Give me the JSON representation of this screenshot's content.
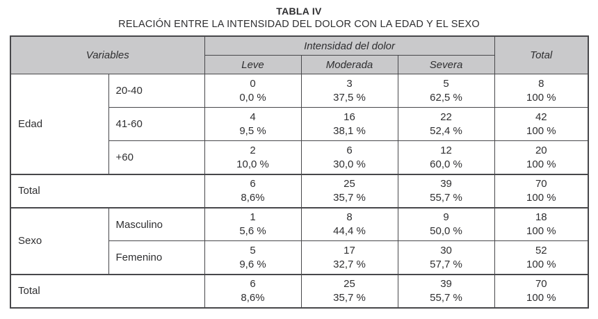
{
  "page": {
    "title": "TABLA IV",
    "subtitle": "RELACIÓN ENTRE LA INTENSIDAD DEL DOLOR CON LA EDAD Y EL SEXO"
  },
  "colors": {
    "header_bg": "#c9c9cb",
    "border": "#47474a",
    "text": "#2e2e30",
    "background": "#ffffff"
  },
  "table": {
    "header": {
      "variables": "Variables",
      "intensity": "Intensidad del dolor",
      "levels": [
        "Leve",
        "Moderada",
        "Severa"
      ],
      "total": "Total"
    },
    "edad": {
      "label": "Edad",
      "rows": [
        {
          "label": "20-40",
          "cells": [
            {
              "count": "0",
              "pct": "0,0 %"
            },
            {
              "count": "3",
              "pct": "37,5 %"
            },
            {
              "count": "5",
              "pct": "62,5 %"
            },
            {
              "count": "8",
              "pct": "100 %"
            }
          ]
        },
        {
          "label": "41-60",
          "cells": [
            {
              "count": "4",
              "pct": "9,5 %"
            },
            {
              "count": "16",
              "pct": "38,1 %"
            },
            {
              "count": "22",
              "pct": "52,4 %"
            },
            {
              "count": "42",
              "pct": "100 %"
            }
          ]
        },
        {
          "label": "+60",
          "cells": [
            {
              "count": "2",
              "pct": "10,0 %"
            },
            {
              "count": "6",
              "pct": "30,0 %"
            },
            {
              "count": "12",
              "pct": "60,0 %"
            },
            {
              "count": "20",
              "pct": "100 %"
            }
          ]
        }
      ],
      "total": {
        "label": "Total",
        "cells": [
          {
            "count": "6",
            "pct": "8,6%"
          },
          {
            "count": "25",
            "pct": "35,7 %"
          },
          {
            "count": "39",
            "pct": "55,7 %"
          },
          {
            "count": "70",
            "pct": "100 %"
          }
        ]
      }
    },
    "sexo": {
      "label": "Sexo",
      "rows": [
        {
          "label": "Masculino",
          "cells": [
            {
              "count": "1",
              "pct": "5,6 %"
            },
            {
              "count": "8",
              "pct": "44,4 %"
            },
            {
              "count": "9",
              "pct": "50,0 %"
            },
            {
              "count": "18",
              "pct": "100 %"
            }
          ]
        },
        {
          "label": "Femenino",
          "cells": [
            {
              "count": "5",
              "pct": "9,6 %"
            },
            {
              "count": "17",
              "pct": "32,7 %"
            },
            {
              "count": "30",
              "pct": "57,7 %"
            },
            {
              "count": "52",
              "pct": "100 %"
            }
          ]
        }
      ],
      "total": {
        "label": "Total",
        "cells": [
          {
            "count": "6",
            "pct": "8,6%"
          },
          {
            "count": "25",
            "pct": "35,7 %"
          },
          {
            "count": "39",
            "pct": "55,7 %"
          },
          {
            "count": "70",
            "pct": "100 %"
          }
        ]
      }
    }
  }
}
